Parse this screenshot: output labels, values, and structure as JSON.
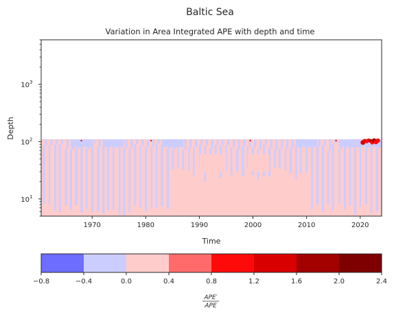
{
  "suptitle": "Baltic Sea",
  "chart_data": {
    "type": "heatmap",
    "title": "Variation in Area Integrated APE with depth and time",
    "xlabel": "Time",
    "ylabel": "Depth",
    "x_range": [
      1960.5,
      2024
    ],
    "x_ticks": [
      1970,
      1980,
      1990,
      2000,
      2010,
      2020
    ],
    "y_scale": "log",
    "y_range": [
      5,
      6000
    ],
    "y_ticks": [
      {
        "value": 10,
        "label": "10",
        "exp": "1"
      },
      {
        "value": 100,
        "label": "10",
        "exp": "2"
      },
      {
        "value": 1000,
        "label": "10",
        "exp": "3"
      }
    ],
    "data_depth_max": 110,
    "field_pattern": {
      "dominant_band": "0.0 to 0.4",
      "secondary_band": "-0.4 to 0.0",
      "structure": "alternating vertical seasonal stripes from 5 to ~110 depth; mostly -0.4..0.0 near the bottom (~70-110) and 0.0..0.4 in mid-depths 1985-2010",
      "hotspots": [
        {
          "time_from": 2020.5,
          "time_to": 2023.5,
          "depth": 100,
          "band": "0.8 to 2.0"
        }
      ]
    },
    "colorbar": {
      "label_num": "APE′",
      "label_den": "APE",
      "levels": [
        -0.8,
        -0.4,
        0.0,
        0.4,
        0.8,
        1.2,
        1.6,
        2.0,
        2.4
      ],
      "tick_labels": [
        "−0.8",
        "−0.4",
        "0.0",
        "0.4",
        "0.8",
        "1.2",
        "1.6",
        "2.0",
        "2.4"
      ],
      "colors": [
        "#6d6dff",
        "#cccdff",
        "#ffcccc",
        "#ff6b6b",
        "#ff0a0a",
        "#d80000",
        "#a30000",
        "#7e0000"
      ]
    }
  }
}
